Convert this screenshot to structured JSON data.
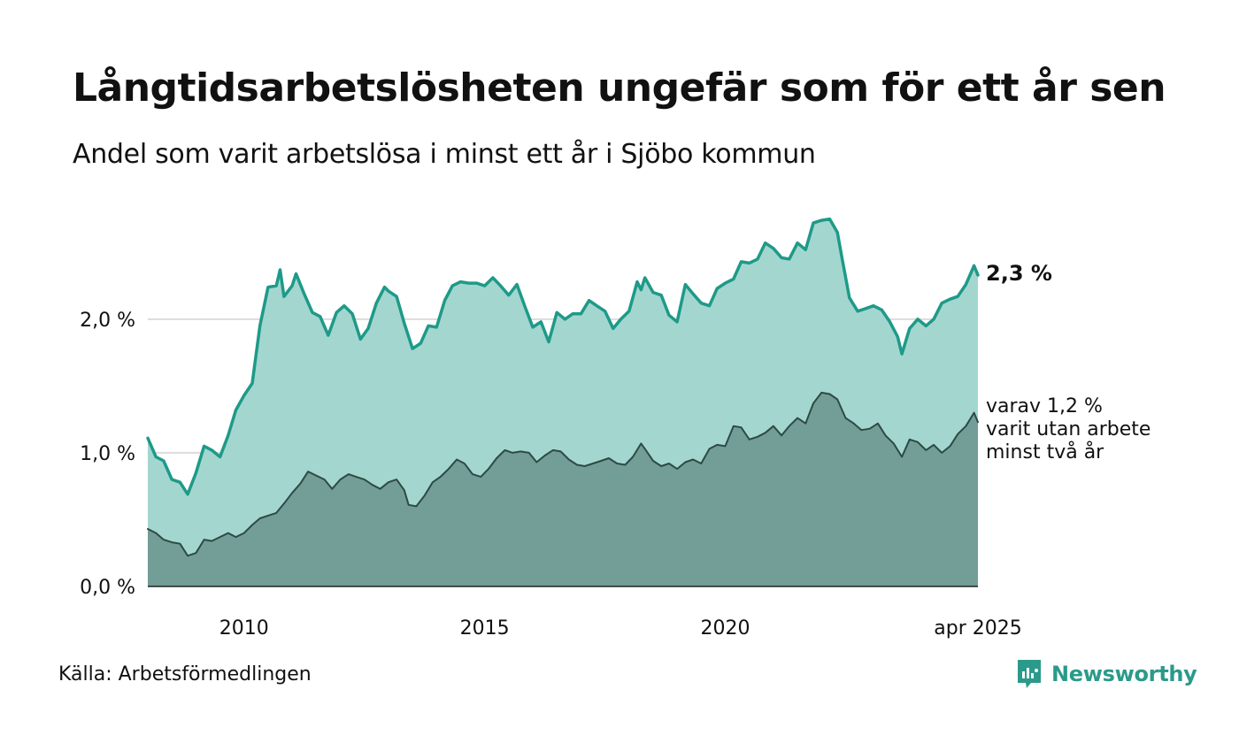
{
  "header": {
    "title": "Långtidsarbetslösheten ungefär som för ett år sen",
    "subtitle": "Andel som varit arbetslösa i minst ett år i Sjöbo kommun"
  },
  "footer": {
    "source": "Källa: Arbetsförmedlingen",
    "brand": "Newsworthy"
  },
  "colors": {
    "total_line": "#1e9a88",
    "total_fill": "#a4d6d0",
    "long_line": "#2d4a44",
    "long_fill": "#729e97",
    "brand": "#2b9a8a"
  },
  "chart_data": {
    "type": "area",
    "x_unit": "year",
    "x_range": [
      2008.0,
      2025.25
    ],
    "ylim": [
      0,
      2.8
    ],
    "y_ticks": [
      {
        "value": 0.0,
        "label": "0,0 %"
      },
      {
        "value": 1.0,
        "label": "1,0 %"
      },
      {
        "value": 2.0,
        "label": "2,0 %"
      }
    ],
    "x_ticks": [
      {
        "value": 2010,
        "label": "2010"
      },
      {
        "value": 2015,
        "label": "2015"
      },
      {
        "value": 2020,
        "label": "2020"
      },
      {
        "value": 2025.25,
        "label": "apr 2025"
      }
    ],
    "grid": "horizontal",
    "series": [
      {
        "key": "total",
        "end_label": "2,3 %",
        "points": [
          [
            2008.0,
            1.11
          ],
          [
            2008.17,
            0.97
          ],
          [
            2008.33,
            0.94
          ],
          [
            2008.5,
            0.8
          ],
          [
            2008.67,
            0.78
          ],
          [
            2008.83,
            0.69
          ],
          [
            2009.0,
            0.85
          ],
          [
            2009.17,
            1.05
          ],
          [
            2009.33,
            1.02
          ],
          [
            2009.5,
            0.97
          ],
          [
            2009.67,
            1.13
          ],
          [
            2009.83,
            1.32
          ],
          [
            2010.0,
            1.43
          ],
          [
            2010.17,
            1.52
          ],
          [
            2010.33,
            1.95
          ],
          [
            2010.5,
            2.24
          ],
          [
            2010.67,
            2.25
          ],
          [
            2010.75,
            2.37
          ],
          [
            2010.83,
            2.17
          ],
          [
            2011.0,
            2.25
          ],
          [
            2011.08,
            2.34
          ],
          [
            2011.25,
            2.19
          ],
          [
            2011.42,
            2.05
          ],
          [
            2011.58,
            2.02
          ],
          [
            2011.75,
            1.88
          ],
          [
            2011.92,
            2.05
          ],
          [
            2012.08,
            2.1
          ],
          [
            2012.25,
            2.04
          ],
          [
            2012.42,
            1.85
          ],
          [
            2012.58,
            1.93
          ],
          [
            2012.75,
            2.12
          ],
          [
            2012.92,
            2.24
          ],
          [
            2013.0,
            2.21
          ],
          [
            2013.17,
            2.17
          ],
          [
            2013.33,
            1.97
          ],
          [
            2013.5,
            1.78
          ],
          [
            2013.67,
            1.82
          ],
          [
            2013.83,
            1.95
          ],
          [
            2014.0,
            1.94
          ],
          [
            2014.17,
            2.14
          ],
          [
            2014.33,
            2.25
          ],
          [
            2014.5,
            2.28
          ],
          [
            2014.67,
            2.27
          ],
          [
            2014.83,
            2.27
          ],
          [
            2015.0,
            2.25
          ],
          [
            2015.17,
            2.31
          ],
          [
            2015.33,
            2.25
          ],
          [
            2015.5,
            2.18
          ],
          [
            2015.67,
            2.26
          ],
          [
            2015.83,
            2.1
          ],
          [
            2016.0,
            1.94
          ],
          [
            2016.17,
            1.98
          ],
          [
            2016.33,
            1.83
          ],
          [
            2016.5,
            2.05
          ],
          [
            2016.67,
            2.0
          ],
          [
            2016.83,
            2.04
          ],
          [
            2017.0,
            2.04
          ],
          [
            2017.17,
            2.14
          ],
          [
            2017.33,
            2.1
          ],
          [
            2017.5,
            2.06
          ],
          [
            2017.67,
            1.93
          ],
          [
            2017.83,
            2.0
          ],
          [
            2018.0,
            2.06
          ],
          [
            2018.17,
            2.28
          ],
          [
            2018.25,
            2.22
          ],
          [
            2018.33,
            2.31
          ],
          [
            2018.5,
            2.2
          ],
          [
            2018.67,
            2.18
          ],
          [
            2018.83,
            2.03
          ],
          [
            2019.0,
            1.98
          ],
          [
            2019.17,
            2.26
          ],
          [
            2019.33,
            2.19
          ],
          [
            2019.5,
            2.12
          ],
          [
            2019.67,
            2.1
          ],
          [
            2019.83,
            2.23
          ],
          [
            2020.0,
            2.27
          ],
          [
            2020.17,
            2.3
          ],
          [
            2020.33,
            2.43
          ],
          [
            2020.5,
            2.42
          ],
          [
            2020.67,
            2.45
          ],
          [
            2020.83,
            2.57
          ],
          [
            2021.0,
            2.53
          ],
          [
            2021.17,
            2.46
          ],
          [
            2021.33,
            2.45
          ],
          [
            2021.5,
            2.57
          ],
          [
            2021.67,
            2.52
          ],
          [
            2021.83,
            2.72
          ],
          [
            2022.0,
            2.74
          ],
          [
            2022.17,
            2.75
          ],
          [
            2022.33,
            2.65
          ],
          [
            2022.42,
            2.47
          ],
          [
            2022.58,
            2.16
          ],
          [
            2022.75,
            2.06
          ],
          [
            2022.92,
            2.08
          ],
          [
            2023.08,
            2.1
          ],
          [
            2023.25,
            2.07
          ],
          [
            2023.42,
            1.98
          ],
          [
            2023.58,
            1.87
          ],
          [
            2023.67,
            1.74
          ],
          [
            2023.83,
            1.93
          ],
          [
            2024.0,
            2.0
          ],
          [
            2024.17,
            1.95
          ],
          [
            2024.33,
            2.0
          ],
          [
            2024.5,
            2.12
          ],
          [
            2024.67,
            2.15
          ],
          [
            2024.83,
            2.17
          ],
          [
            2025.0,
            2.26
          ],
          [
            2025.17,
            2.4
          ],
          [
            2025.25,
            2.33
          ]
        ]
      },
      {
        "key": "long",
        "end_label": "varav 1,2 %",
        "end_label_lines": [
          "varav 1,2 %",
          "varit utan arbete",
          "minst två år"
        ],
        "points": [
          [
            2008.0,
            0.43
          ],
          [
            2008.17,
            0.4
          ],
          [
            2008.33,
            0.35
          ],
          [
            2008.5,
            0.33
          ],
          [
            2008.67,
            0.32
          ],
          [
            2008.83,
            0.23
          ],
          [
            2009.0,
            0.25
          ],
          [
            2009.17,
            0.35
          ],
          [
            2009.33,
            0.34
          ],
          [
            2009.5,
            0.37
          ],
          [
            2009.67,
            0.4
          ],
          [
            2009.83,
            0.37
          ],
          [
            2010.0,
            0.4
          ],
          [
            2010.17,
            0.46
          ],
          [
            2010.33,
            0.51
          ],
          [
            2010.5,
            0.53
          ],
          [
            2010.67,
            0.55
          ],
          [
            2010.83,
            0.62
          ],
          [
            2011.0,
            0.7
          ],
          [
            2011.17,
            0.77
          ],
          [
            2011.33,
            0.86
          ],
          [
            2011.5,
            0.83
          ],
          [
            2011.67,
            0.8
          ],
          [
            2011.83,
            0.73
          ],
          [
            2012.0,
            0.8
          ],
          [
            2012.17,
            0.84
          ],
          [
            2012.33,
            0.82
          ],
          [
            2012.5,
            0.8
          ],
          [
            2012.67,
            0.76
          ],
          [
            2012.83,
            0.73
          ],
          [
            2013.0,
            0.78
          ],
          [
            2013.17,
            0.8
          ],
          [
            2013.33,
            0.72
          ],
          [
            2013.42,
            0.61
          ],
          [
            2013.58,
            0.6
          ],
          [
            2013.75,
            0.68
          ],
          [
            2013.92,
            0.78
          ],
          [
            2014.08,
            0.82
          ],
          [
            2014.25,
            0.88
          ],
          [
            2014.42,
            0.95
          ],
          [
            2014.58,
            0.92
          ],
          [
            2014.75,
            0.84
          ],
          [
            2014.92,
            0.82
          ],
          [
            2015.08,
            0.88
          ],
          [
            2015.25,
            0.96
          ],
          [
            2015.42,
            1.02
          ],
          [
            2015.58,
            1.0
          ],
          [
            2015.75,
            1.01
          ],
          [
            2015.92,
            1.0
          ],
          [
            2016.08,
            0.93
          ],
          [
            2016.25,
            0.98
          ],
          [
            2016.42,
            1.02
          ],
          [
            2016.58,
            1.01
          ],
          [
            2016.75,
            0.95
          ],
          [
            2016.92,
            0.91
          ],
          [
            2017.08,
            0.9
          ],
          [
            2017.25,
            0.92
          ],
          [
            2017.42,
            0.94
          ],
          [
            2017.58,
            0.96
          ],
          [
            2017.75,
            0.92
          ],
          [
            2017.92,
            0.91
          ],
          [
            2018.08,
            0.97
          ],
          [
            2018.25,
            1.07
          ],
          [
            2018.33,
            1.03
          ],
          [
            2018.5,
            0.94
          ],
          [
            2018.67,
            0.9
          ],
          [
            2018.83,
            0.92
          ],
          [
            2019.0,
            0.88
          ],
          [
            2019.17,
            0.93
          ],
          [
            2019.33,
            0.95
          ],
          [
            2019.5,
            0.92
          ],
          [
            2019.67,
            1.03
          ],
          [
            2019.83,
            1.06
          ],
          [
            2020.0,
            1.05
          ],
          [
            2020.17,
            1.2
          ],
          [
            2020.33,
            1.19
          ],
          [
            2020.5,
            1.1
          ],
          [
            2020.67,
            1.12
          ],
          [
            2020.83,
            1.15
          ],
          [
            2021.0,
            1.2
          ],
          [
            2021.17,
            1.13
          ],
          [
            2021.33,
            1.2
          ],
          [
            2021.5,
            1.26
          ],
          [
            2021.67,
            1.22
          ],
          [
            2021.83,
            1.37
          ],
          [
            2022.0,
            1.45
          ],
          [
            2022.17,
            1.44
          ],
          [
            2022.33,
            1.4
          ],
          [
            2022.5,
            1.26
          ],
          [
            2022.67,
            1.22
          ],
          [
            2022.83,
            1.17
          ],
          [
            2023.0,
            1.18
          ],
          [
            2023.17,
            1.22
          ],
          [
            2023.33,
            1.13
          ],
          [
            2023.5,
            1.07
          ],
          [
            2023.67,
            0.97
          ],
          [
            2023.83,
            1.1
          ],
          [
            2024.0,
            1.08
          ],
          [
            2024.17,
            1.02
          ],
          [
            2024.33,
            1.06
          ],
          [
            2024.5,
            1.0
          ],
          [
            2024.67,
            1.05
          ],
          [
            2024.83,
            1.14
          ],
          [
            2025.0,
            1.2
          ],
          [
            2025.17,
            1.3
          ],
          [
            2025.25,
            1.23
          ]
        ]
      }
    ]
  }
}
